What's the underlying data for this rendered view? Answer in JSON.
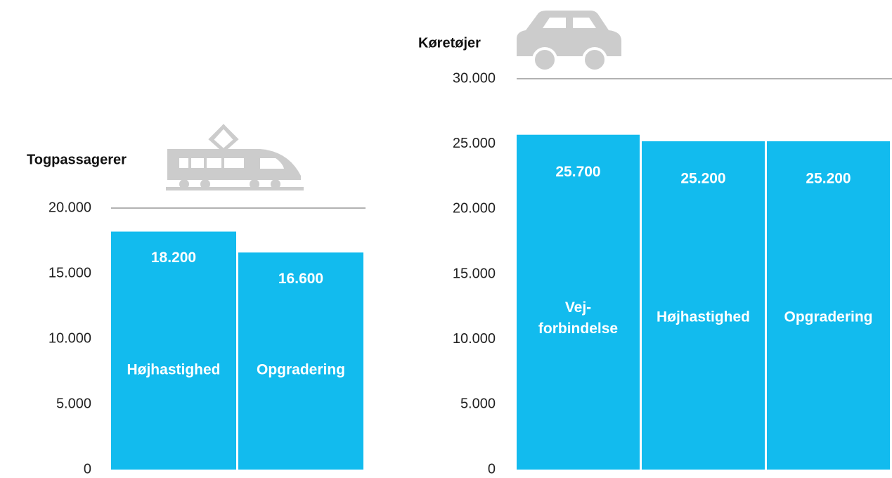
{
  "chart_data": [
    {
      "type": "bar",
      "title": "Togpassagerer",
      "categories": [
        "Højhastighed",
        "Opgradering"
      ],
      "values": [
        18200,
        16600
      ],
      "value_labels": [
        "18.200",
        "16.600"
      ],
      "color": "#12bbee",
      "ylim": [
        0,
        20000
      ],
      "yticks": [
        0,
        {
          "value": 5000,
          "label": "5.000"
        },
        {
          "value": 10000,
          "label": "10.000"
        },
        {
          "value": 15000,
          "label": "15.000"
        },
        {
          "value": 20000,
          "label": "20.000"
        }
      ]
    },
    {
      "type": "bar",
      "title": "Køretøjer",
      "categories": [
        "Vej-forbindelse",
        "Højhastighed",
        "Opgradering"
      ],
      "values": [
        25700,
        25200,
        25200
      ],
      "value_labels": [
        "25.700",
        "25.200",
        "25.200"
      ],
      "color": "#12bbee",
      "ylim": [
        0,
        30000
      ],
      "yticks": [
        0,
        {
          "value": 5000,
          "label": "5.000"
        },
        {
          "value": 10000,
          "label": "10.000"
        },
        {
          "value": 15000,
          "label": "15.000"
        },
        {
          "value": 20000,
          "label": "20.000"
        },
        {
          "value": 25000,
          "label": "25.000"
        },
        {
          "value": 30000,
          "label": "30.000"
        }
      ]
    }
  ]
}
